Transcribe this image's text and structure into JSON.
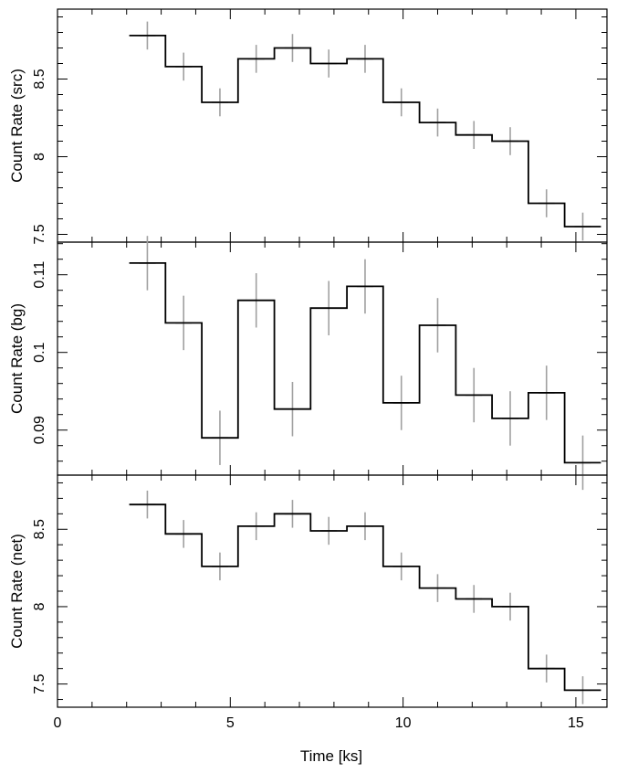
{
  "chart_data": [
    {
      "type": "line",
      "panel": "src",
      "ylabel": "Count Rate (src)",
      "xlim": [
        0,
        15.9
      ],
      "ylim": [
        7.45,
        8.95
      ],
      "yticks": [
        7.5,
        8,
        8.5
      ],
      "ytick_labels": [
        "7.5",
        "8",
        "8.5"
      ],
      "step_color": "#000000",
      "error_color": "#a0a0a0",
      "series": [
        {
          "x": [
            2.6,
            3.65,
            4.7,
            5.75,
            6.8,
            7.85,
            8.9,
            9.95,
            11.0,
            12.05,
            13.1,
            14.15,
            15.2
          ],
          "y": [
            8.78,
            8.58,
            8.35,
            8.63,
            8.7,
            8.6,
            8.63,
            8.35,
            8.22,
            8.14,
            8.1,
            7.7,
            7.55
          ],
          "xerr": 0.525,
          "yerr": [
            0.09,
            0.09,
            0.09,
            0.09,
            0.09,
            0.09,
            0.09,
            0.09,
            0.09,
            0.09,
            0.09,
            0.09,
            0.09
          ]
        }
      ]
    },
    {
      "type": "line",
      "panel": "bg",
      "ylabel": "Count Rate (bg)",
      "xlim": [
        0,
        15.9
      ],
      "ylim": [
        0.0842,
        0.1142
      ],
      "yticks": [
        0.09,
        0.1,
        0.11
      ],
      "ytick_labels": [
        "0.09",
        "0.1",
        "0.11"
      ],
      "step_color": "#000000",
      "error_color": "#a0a0a0",
      "series": [
        {
          "x": [
            2.6,
            3.65,
            4.7,
            5.75,
            6.8,
            7.85,
            8.9,
            9.95,
            11.0,
            12.05,
            13.1,
            14.15,
            15.2
          ],
          "y": [
            0.1115,
            0.1038,
            0.089,
            0.1067,
            0.0927,
            0.1057,
            0.1085,
            0.0935,
            0.1035,
            0.0945,
            0.0915,
            0.0948,
            0.0858
          ],
          "xerr": 0.525,
          "yerr": [
            0.0035,
            0.0035,
            0.0035,
            0.0035,
            0.0035,
            0.0035,
            0.0035,
            0.0035,
            0.0035,
            0.0035,
            0.0035,
            0.0035,
            0.0035
          ]
        }
      ]
    },
    {
      "type": "line",
      "panel": "net",
      "ylabel": "Count Rate (net)",
      "xlabel": "Time [ks]",
      "xlim": [
        0,
        15.9
      ],
      "ylim": [
        7.35,
        8.85
      ],
      "xticks": [
        0,
        5,
        10,
        15
      ],
      "xtick_labels": [
        "0",
        "5",
        "10",
        "15"
      ],
      "yticks": [
        7.5,
        8,
        8.5
      ],
      "ytick_labels": [
        "7.5",
        "8",
        "8.5"
      ],
      "step_color": "#000000",
      "error_color": "#a0a0a0",
      "series": [
        {
          "x": [
            2.6,
            3.65,
            4.7,
            5.75,
            6.8,
            7.85,
            8.9,
            9.95,
            11.0,
            12.05,
            13.1,
            14.15,
            15.2
          ],
          "y": [
            8.66,
            8.47,
            8.26,
            8.52,
            8.6,
            8.49,
            8.52,
            8.26,
            8.12,
            8.05,
            8.0,
            7.6,
            7.46
          ],
          "xerr": 0.525,
          "yerr": [
            0.09,
            0.09,
            0.09,
            0.09,
            0.09,
            0.09,
            0.09,
            0.09,
            0.09,
            0.09,
            0.09,
            0.09,
            0.09
          ]
        }
      ]
    }
  ]
}
